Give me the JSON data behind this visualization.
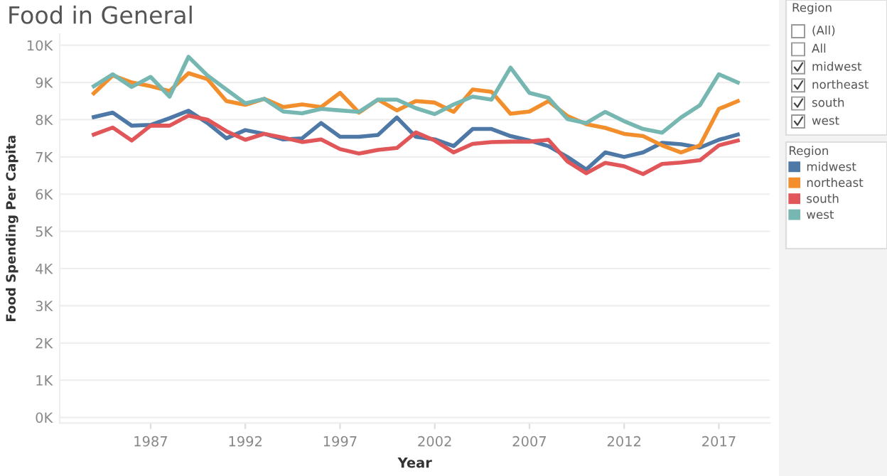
{
  "chart_data": {
    "type": "line",
    "title": "Food in General",
    "xlabel": "Year",
    "ylabel": "Food Spending Per Capita",
    "legend_title": "Region",
    "legend": "right",
    "grid": "y",
    "x": [
      1984,
      1985,
      1986,
      1987,
      1988,
      1989,
      1990,
      1991,
      1992,
      1993,
      1994,
      1995,
      1996,
      1997,
      1998,
      1999,
      2000,
      2001,
      2002,
      2003,
      2004,
      2005,
      2006,
      2007,
      2008,
      2009,
      2010,
      2011,
      2012,
      2013,
      2014,
      2015,
      2016,
      2017,
      2018
    ],
    "series": [
      {
        "name": "midwest",
        "color": "#4e79a7",
        "values": [
          8070,
          8190,
          7840,
          7860,
          8040,
          8240,
          7910,
          7500,
          7720,
          7620,
          7470,
          7500,
          7910,
          7540,
          7540,
          7590,
          8060,
          7540,
          7470,
          7290,
          7750,
          7750,
          7560,
          7440,
          7290,
          7000,
          6660,
          7120,
          7000,
          7120,
          7380,
          7340,
          7250,
          7460,
          7600
        ]
      },
      {
        "name": "northeast",
        "color": "#f28e2b",
        "values": [
          8710,
          9190,
          9000,
          8900,
          8770,
          9250,
          9090,
          8500,
          8400,
          8560,
          8340,
          8410,
          8340,
          8720,
          8190,
          8540,
          8250,
          8500,
          8460,
          8210,
          8810,
          8750,
          8160,
          8220,
          8500,
          8100,
          7880,
          7780,
          7620,
          7560,
          7310,
          7120,
          7310,
          8290,
          8500
        ]
      },
      {
        "name": "south",
        "color": "#e15759",
        "values": [
          7600,
          7790,
          7440,
          7840,
          7840,
          8110,
          8000,
          7690,
          7460,
          7620,
          7520,
          7400,
          7470,
          7210,
          7090,
          7190,
          7240,
          7660,
          7440,
          7120,
          7350,
          7400,
          7410,
          7410,
          7460,
          6880,
          6560,
          6840,
          6750,
          6540,
          6810,
          6850,
          6910,
          7310,
          7440
        ]
      },
      {
        "name": "west",
        "color": "#76b7b2",
        "values": [
          8900,
          9220,
          8880,
          9150,
          8620,
          9690,
          9190,
          8810,
          8440,
          8560,
          8220,
          8170,
          8290,
          8250,
          8210,
          8540,
          8540,
          8310,
          8150,
          8410,
          8620,
          8540,
          9400,
          8720,
          8590,
          8020,
          7910,
          8210,
          7960,
          7750,
          7650,
          8060,
          8390,
          9220,
          9000
        ]
      }
    ],
    "xlim": [
      1982.2,
      2019.7
    ],
    "xticks": [
      1987,
      1992,
      1997,
      2002,
      2007,
      2012,
      2017
    ],
    "ylim": [
      -150,
      10300
    ],
    "yticks": [
      {
        "value": 0,
        "label": "0K"
      },
      {
        "value": 1000,
        "label": "1K"
      },
      {
        "value": 2000,
        "label": "2K"
      },
      {
        "value": 3000,
        "label": "3K"
      },
      {
        "value": 4000,
        "label": "4K"
      },
      {
        "value": 5000,
        "label": "5K"
      },
      {
        "value": 6000,
        "label": "6K"
      },
      {
        "value": 7000,
        "label": "7K"
      },
      {
        "value": 8000,
        "label": "8K"
      },
      {
        "value": 9000,
        "label": "9K"
      },
      {
        "value": 10000,
        "label": "10K"
      }
    ],
    "annotations": [
      "Region",
      "(All)",
      "All",
      "midwest",
      "northeast",
      "south",
      "west"
    ]
  }
}
